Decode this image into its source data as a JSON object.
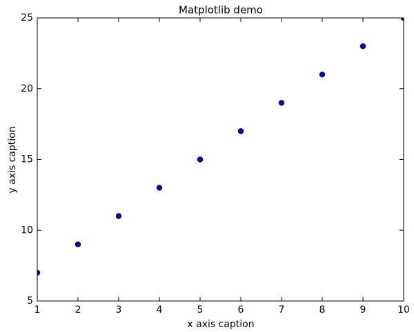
{
  "chart_data": {
    "type": "scatter",
    "title": "Matplotlib demo",
    "x_label": "x axis caption",
    "y_label": "y axis caption",
    "series": [
      {
        "color": "#0000bf",
        "x": [
          1,
          2,
          3,
          4,
          5,
          6,
          7,
          8,
          9,
          10
        ],
        "values": [
          7,
          9,
          11,
          13,
          15,
          17,
          19,
          21,
          23,
          25
        ]
      }
    ],
    "xlim": [
      1,
      10
    ],
    "ylim": [
      5,
      25
    ],
    "xticks": [
      1,
      2,
      3,
      4,
      5,
      6,
      7,
      8,
      9,
      10
    ],
    "yticks": [
      5,
      10,
      15,
      20,
      25
    ],
    "grid": false
  }
}
